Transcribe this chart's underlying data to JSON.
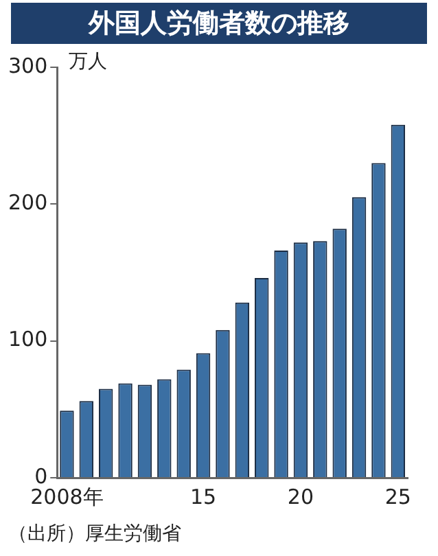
{
  "chart_data": {
    "type": "bar",
    "title": "外国人労働者数の推移",
    "ylabel": "万人",
    "categories": [
      "2008年",
      null,
      null,
      null,
      null,
      null,
      null,
      "15",
      null,
      null,
      null,
      null,
      "20",
      null,
      null,
      null,
      null,
      "25"
    ],
    "values": [
      49,
      56,
      65,
      69,
      68,
      72,
      79,
      91,
      108,
      128,
      146,
      166,
      172,
      173,
      182,
      205,
      230,
      258
    ],
    "color": "#3b6fa3",
    "ylim": [
      0,
      300
    ],
    "yticks": [
      0,
      100,
      200,
      300
    ],
    "grid": false,
    "legend": false,
    "annotations": [
      "（出所）厚生労働省"
    ]
  }
}
